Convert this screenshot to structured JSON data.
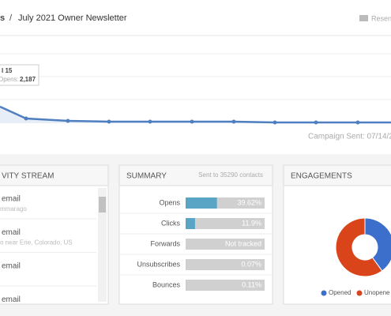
{
  "header": {
    "breadcrumb_parent": "s",
    "separator": "/",
    "title": "July 2021 Owner Newsletter",
    "action": "Resen"
  },
  "tooltip": {
    "date": "l 15",
    "label": "Opens:",
    "value": "2,187"
  },
  "sent_note": "Campaign Sent: 07/14/2",
  "activity": {
    "title": "VITY STREAM",
    "items": [
      {
        "title": "email",
        "detail": "mmarago"
      },
      {
        "title": "email",
        "detail": "o near Erie, Colorado, US"
      },
      {
        "title": "email",
        "detail": null
      },
      {
        "title": "email",
        "detail": null
      }
    ]
  },
  "summary": {
    "title": "SUMMARY",
    "note": "Sent to 35290 contacts",
    "max": 100,
    "rows": [
      {
        "label": "Opens",
        "value": 39.62,
        "value_label": "39.62%"
      },
      {
        "label": "Clicks",
        "value": 11.9,
        "value_label": "11.9%"
      },
      {
        "label": "Forwards",
        "value": null,
        "value_label": "Not tracked"
      },
      {
        "label": "Unsubscribes",
        "value": 0.07,
        "value_label": "0.07%"
      },
      {
        "label": "Bounces",
        "value": 0.11,
        "value_label": "0.11%"
      }
    ]
  },
  "engagements": {
    "title": "ENGAGEMENTS",
    "chart_data": {
      "type": "pie",
      "categories": [
        "Opened",
        "Unopene"
      ],
      "values": [
        40,
        60
      ],
      "colors": [
        "#3b6fcb",
        "#d9441a"
      ]
    }
  }
}
